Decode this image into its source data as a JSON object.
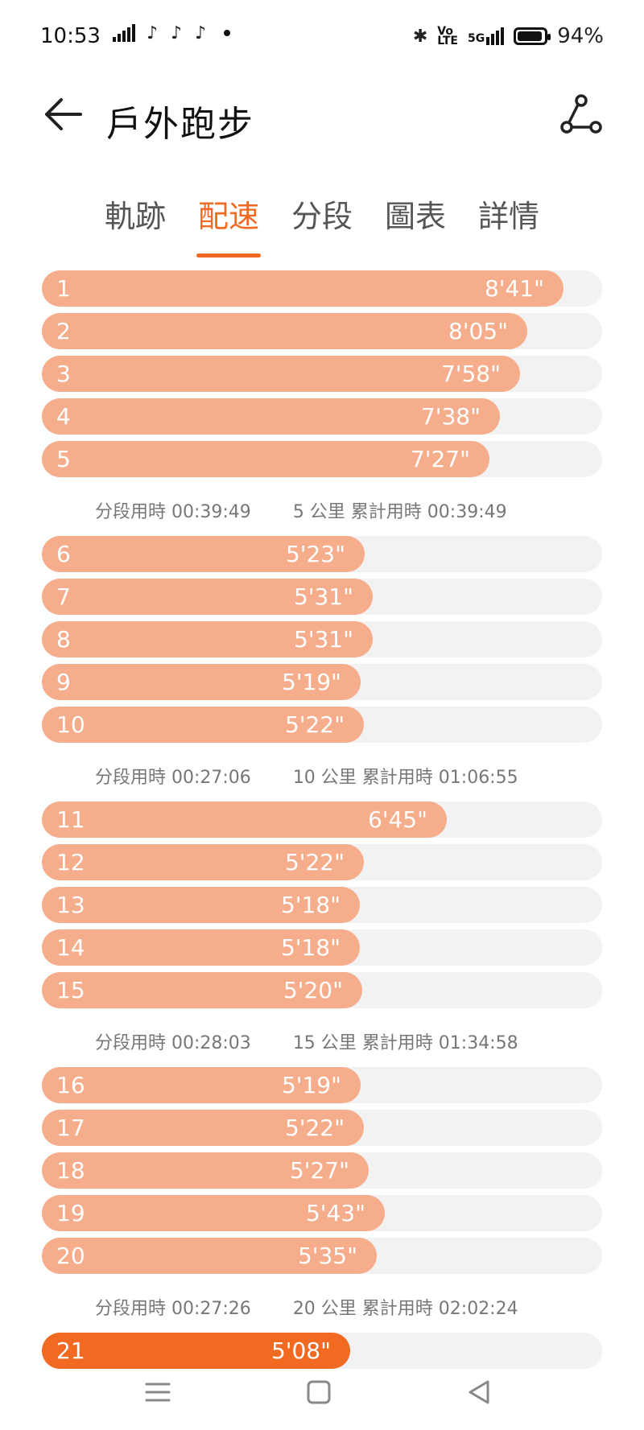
{
  "status_bar": {
    "time": "10:53",
    "battery": "94%",
    "bluetooth_icon": "bluetooth-icon",
    "volte_label": "Vo\nLTE",
    "network_label": "5G"
  },
  "header": {
    "title": "戶外跑步",
    "back_icon": "arrow-left-icon",
    "share_icon": "share-icon"
  },
  "tabs": [
    {
      "label": "軌跡",
      "active": false
    },
    {
      "label": "配速",
      "active": true
    },
    {
      "label": "分段",
      "active": false
    },
    {
      "label": "圖表",
      "active": false
    },
    {
      "label": "詳情",
      "active": false
    }
  ],
  "accent_color": "#f26a21",
  "bar_color": "#f5ad8c",
  "groups": [
    {
      "splits": [
        {
          "km": "1",
          "pace": "8'41\""
        },
        {
          "km": "2",
          "pace": "8'05\""
        },
        {
          "km": "3",
          "pace": "7'58\""
        },
        {
          "km": "4",
          "pace": "7'38\""
        },
        {
          "km": "5",
          "pace": "7'27\""
        }
      ],
      "segment_time": "分段用時 00:39:49",
      "cumulative": "5 公里 累計用時 00:39:49"
    },
    {
      "splits": [
        {
          "km": "6",
          "pace": "5'23\""
        },
        {
          "km": "7",
          "pace": "5'31\""
        },
        {
          "km": "8",
          "pace": "5'31\""
        },
        {
          "km": "9",
          "pace": "5'19\""
        },
        {
          "km": "10",
          "pace": "5'22\""
        }
      ],
      "segment_time": "分段用時 00:27:06",
      "cumulative": "10 公里 累計用時 01:06:55"
    },
    {
      "splits": [
        {
          "km": "11",
          "pace": "6'45\""
        },
        {
          "km": "12",
          "pace": "5'22\""
        },
        {
          "km": "13",
          "pace": "5'18\""
        },
        {
          "km": "14",
          "pace": "5'18\""
        },
        {
          "km": "15",
          "pace": "5'20\""
        }
      ],
      "segment_time": "分段用時 00:28:03",
      "cumulative": "15 公里 累計用時 01:34:58"
    },
    {
      "splits": [
        {
          "km": "16",
          "pace": "5'19\""
        },
        {
          "km": "17",
          "pace": "5'22\""
        },
        {
          "km": "18",
          "pace": "5'27\""
        },
        {
          "km": "19",
          "pace": "5'43\""
        },
        {
          "km": "20",
          "pace": "5'35\""
        }
      ],
      "segment_time": "分段用時 00:27:26",
      "cumulative": "20 公里 累計用時 02:02:24"
    },
    {
      "splits": [
        {
          "km": "21",
          "pace": "5'08\"",
          "current": true
        }
      ]
    }
  ],
  "nav_bar": {
    "menu_icon": "menu-icon",
    "home_icon": "home-icon",
    "back_icon": "back-triangle-icon"
  }
}
